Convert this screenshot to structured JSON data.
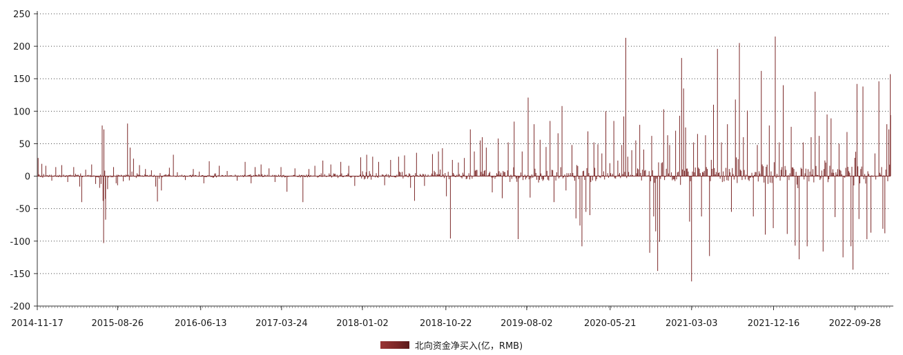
{
  "chart_data": {
    "type": "bar",
    "title": "",
    "xlabel": "",
    "ylabel": "",
    "ylim": [
      -200,
      250
    ],
    "y_ticks": [
      250,
      200,
      150,
      100,
      50,
      0,
      -50,
      -100,
      -150,
      -200
    ],
    "x_tick_labels": [
      "2014-11-17",
      "2015-08-26",
      "2016-06-13",
      "2017-03-24",
      "2018-01-02",
      "2018-10-22",
      "2019-08-02",
      "2020-05-21",
      "2021-03-03",
      "2021-12-16",
      "2022-09-28"
    ],
    "x_range": [
      "2014-11-17",
      "2023-01-31"
    ],
    "grid": {
      "horizontal": true,
      "style": "dotted"
    },
    "legend_position": "bottom-center",
    "series": [
      {
        "name": "北向资金净买入(亿，RMB)",
        "color": "#7a2626",
        "points": [
          [
            "2014-11-17",
            36
          ],
          [
            "2014-11-20",
            28
          ],
          [
            "2014-12-03",
            19
          ],
          [
            "2014-12-17",
            16
          ],
          [
            "2015-01-07",
            -7
          ],
          [
            "2015-01-21",
            14
          ],
          [
            "2015-02-11",
            17
          ],
          [
            "2015-03-04",
            -9
          ],
          [
            "2015-03-25",
            14
          ],
          [
            "2015-04-15",
            -16
          ],
          [
            "2015-04-22",
            -40
          ],
          [
            "2015-05-06",
            10
          ],
          [
            "2015-05-27",
            18
          ],
          [
            "2015-06-10",
            -12
          ],
          [
            "2015-06-24",
            -18
          ],
          [
            "2015-06-29",
            -12
          ],
          [
            "2015-07-03",
            78
          ],
          [
            "2015-07-06",
            -38
          ],
          [
            "2015-07-08",
            -103
          ],
          [
            "2015-07-09",
            72
          ],
          [
            "2015-07-14",
            -35
          ],
          [
            "2015-07-15",
            -67
          ],
          [
            "2015-07-22",
            -20
          ],
          [
            "2015-08-12",
            14
          ],
          [
            "2015-08-21",
            -11
          ],
          [
            "2015-08-26",
            -14
          ],
          [
            "2015-09-15",
            -8
          ],
          [
            "2015-09-30",
            81
          ],
          [
            "2015-10-09",
            44
          ],
          [
            "2015-10-21",
            27
          ],
          [
            "2015-11-11",
            17
          ],
          [
            "2015-12-02",
            11
          ],
          [
            "2015-12-23",
            9
          ],
          [
            "2016-01-07",
            -16
          ],
          [
            "2016-01-13",
            -39
          ],
          [
            "2016-01-27",
            -22
          ],
          [
            "2016-02-24",
            13
          ],
          [
            "2016-03-09",
            33
          ],
          [
            "2016-03-23",
            6
          ],
          [
            "2016-04-20",
            -6
          ],
          [
            "2016-05-18",
            11
          ],
          [
            "2016-06-08",
            7
          ],
          [
            "2016-06-24",
            -11
          ],
          [
            "2016-07-13",
            23
          ],
          [
            "2016-08-17",
            16
          ],
          [
            "2016-09-14",
            8
          ],
          [
            "2016-10-19",
            -7
          ],
          [
            "2016-11-16",
            22
          ],
          [
            "2016-12-07",
            -11
          ],
          [
            "2016-12-21",
            14
          ],
          [
            "2017-01-11",
            18
          ],
          [
            "2017-02-08",
            12
          ],
          [
            "2017-03-01",
            -9
          ],
          [
            "2017-03-22",
            14
          ],
          [
            "2017-04-12",
            -24
          ],
          [
            "2017-05-10",
            12
          ],
          [
            "2017-06-07",
            -40
          ],
          [
            "2017-06-28",
            11
          ],
          [
            "2017-07-19",
            16
          ],
          [
            "2017-08-16",
            24
          ],
          [
            "2017-09-13",
            18
          ],
          [
            "2017-10-18",
            22
          ],
          [
            "2017-11-15",
            16
          ],
          [
            "2017-12-06",
            -15
          ],
          [
            "2017-12-27",
            29
          ],
          [
            "2018-01-17",
            33
          ],
          [
            "2018-02-07",
            30
          ],
          [
            "2018-02-28",
            22
          ],
          [
            "2018-03-21",
            -14
          ],
          [
            "2018-04-11",
            25
          ],
          [
            "2018-05-09",
            30
          ],
          [
            "2018-05-30",
            32
          ],
          [
            "2018-06-20",
            -18
          ],
          [
            "2018-07-04",
            -38
          ],
          [
            "2018-07-11",
            36
          ],
          [
            "2018-08-08",
            -15
          ],
          [
            "2018-09-05",
            34
          ],
          [
            "2018-09-26",
            38
          ],
          [
            "2018-10-10",
            43
          ],
          [
            "2018-10-24",
            -31
          ],
          [
            "2018-11-07",
            -96
          ],
          [
            "2018-11-14",
            25
          ],
          [
            "2018-12-05",
            21
          ],
          [
            "2018-12-26",
            28
          ],
          [
            "2019-01-16",
            72
          ],
          [
            "2019-01-30",
            38
          ],
          [
            "2019-02-20",
            55
          ],
          [
            "2019-02-27",
            60
          ],
          [
            "2019-03-13",
            44
          ],
          [
            "2019-04-03",
            -25
          ],
          [
            "2019-04-24",
            58
          ],
          [
            "2019-05-08",
            -34
          ],
          [
            "2019-05-29",
            52
          ],
          [
            "2019-06-19",
            84
          ],
          [
            "2019-07-03",
            -97
          ],
          [
            "2019-07-17",
            38
          ],
          [
            "2019-08-07",
            121
          ],
          [
            "2019-08-14",
            -33
          ],
          [
            "2019-08-28",
            80
          ],
          [
            "2019-09-18",
            56
          ],
          [
            "2019-10-09",
            45
          ],
          [
            "2019-10-23",
            85
          ],
          [
            "2019-11-06",
            -40
          ],
          [
            "2019-11-20",
            66
          ],
          [
            "2019-12-04",
            108
          ],
          [
            "2019-12-18",
            -22
          ],
          [
            "2020-01-08",
            48
          ],
          [
            "2020-01-22",
            -65
          ],
          [
            "2020-02-05",
            -76
          ],
          [
            "2020-02-12",
            -108
          ],
          [
            "2020-02-26",
            -55
          ],
          [
            "2020-03-04",
            69
          ],
          [
            "2020-03-11",
            -60
          ],
          [
            "2020-03-25",
            52
          ],
          [
            "2020-04-08",
            49
          ],
          [
            "2020-04-22",
            35
          ],
          [
            "2020-05-06",
            100
          ],
          [
            "2020-05-20",
            20
          ],
          [
            "2020-06-03",
            85
          ],
          [
            "2020-06-17",
            24
          ],
          [
            "2020-07-01",
            48
          ],
          [
            "2020-07-08",
            92
          ],
          [
            "2020-07-15",
            213
          ],
          [
            "2020-07-22",
            30
          ],
          [
            "2020-08-05",
            40
          ],
          [
            "2020-08-19",
            55
          ],
          [
            "2020-09-02",
            79
          ],
          [
            "2020-09-16",
            41
          ],
          [
            "2020-10-07",
            -118
          ],
          [
            "2020-10-14",
            62
          ],
          [
            "2020-10-21",
            -62
          ],
          [
            "2020-10-28",
            -85
          ],
          [
            "2020-11-04",
            -146
          ],
          [
            "2020-11-11",
            -101
          ],
          [
            "2020-11-25",
            103
          ],
          [
            "2020-12-09",
            63
          ],
          [
            "2020-12-16",
            48
          ],
          [
            "2021-01-06",
            70
          ],
          [
            "2021-01-20",
            93
          ],
          [
            "2021-01-27",
            182
          ],
          [
            "2021-02-03",
            135
          ],
          [
            "2021-02-10",
            75
          ],
          [
            "2021-02-24",
            -70
          ],
          [
            "2021-03-03",
            -162
          ],
          [
            "2021-03-10",
            52
          ],
          [
            "2021-03-24",
            65
          ],
          [
            "2021-04-07",
            -62
          ],
          [
            "2021-04-21",
            63
          ],
          [
            "2021-05-05",
            -123
          ],
          [
            "2021-05-19",
            110
          ],
          [
            "2021-06-02",
            196
          ],
          [
            "2021-06-16",
            52
          ],
          [
            "2021-07-07",
            80
          ],
          [
            "2021-07-21",
            -55
          ],
          [
            "2021-08-04",
            118
          ],
          [
            "2021-08-18",
            205
          ],
          [
            "2021-09-01",
            60
          ],
          [
            "2021-09-15",
            101
          ],
          [
            "2021-10-06",
            -62
          ],
          [
            "2021-10-20",
            48
          ],
          [
            "2021-11-03",
            162
          ],
          [
            "2021-11-17",
            -90
          ],
          [
            "2021-12-01",
            78
          ],
          [
            "2021-12-15",
            -80
          ],
          [
            "2021-12-22",
            215
          ],
          [
            "2022-01-05",
            52
          ],
          [
            "2022-01-19",
            140
          ],
          [
            "2022-02-02",
            -89
          ],
          [
            "2022-02-16",
            76
          ],
          [
            "2022-03-02",
            -107
          ],
          [
            "2022-03-16",
            -128
          ],
          [
            "2022-03-30",
            52
          ],
          [
            "2022-04-13",
            -108
          ],
          [
            "2022-04-27",
            60
          ],
          [
            "2022-05-11",
            130
          ],
          [
            "2022-05-25",
            62
          ],
          [
            "2022-06-08",
            -116
          ],
          [
            "2022-06-22",
            95
          ],
          [
            "2022-07-06",
            89
          ],
          [
            "2022-07-20",
            -63
          ],
          [
            "2022-08-03",
            50
          ],
          [
            "2022-08-17",
            -125
          ],
          [
            "2022-08-31",
            68
          ],
          [
            "2022-09-14",
            -108
          ],
          [
            "2022-09-21",
            -144
          ],
          [
            "2022-10-05",
            142
          ],
          [
            "2022-10-12",
            -66
          ],
          [
            "2022-10-26",
            138
          ],
          [
            "2022-11-09",
            -97
          ],
          [
            "2022-11-23",
            -87
          ],
          [
            "2022-12-07",
            35
          ],
          [
            "2022-12-21",
            146
          ],
          [
            "2023-01-04",
            -81
          ],
          [
            "2023-01-11",
            -88
          ],
          [
            "2023-01-18",
            80
          ],
          [
            "2023-01-25",
            72
          ],
          [
            "2023-01-30",
            157
          ],
          [
            "2023-01-31",
            94
          ]
        ]
      }
    ]
  }
}
